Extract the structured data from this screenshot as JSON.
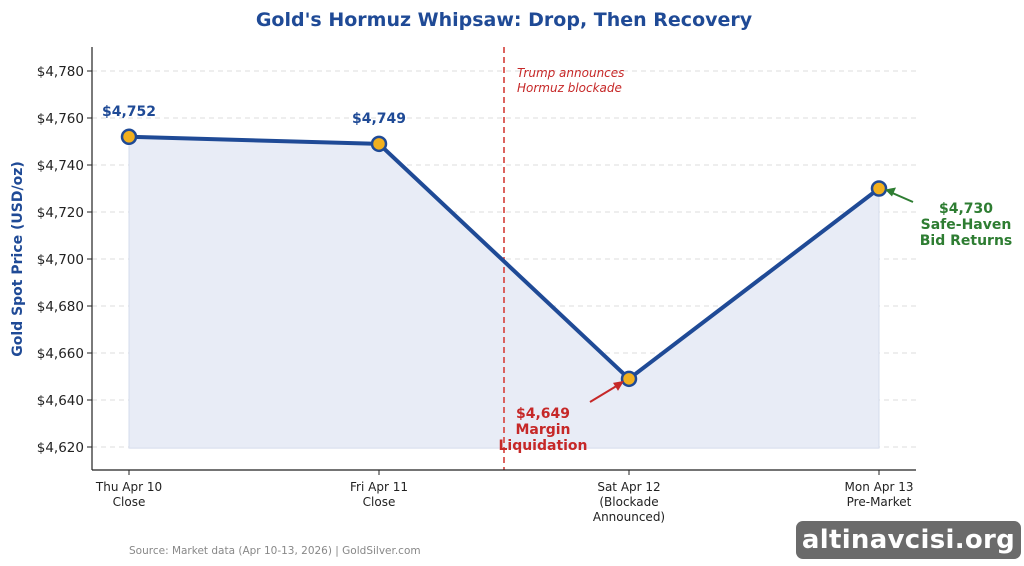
{
  "chart_data": {
    "type": "line",
    "title": "Gold's Hormuz Whipsaw: Drop, Then Recovery",
    "ylabel": "Gold Spot Price (USD/oz)",
    "xlabel": "",
    "categories": [
      [
        "Thu Apr 10",
        "Close"
      ],
      [
        "Fri Apr 11",
        "Close"
      ],
      [
        "Sat Apr 12",
        "(Blockade",
        "Announced)"
      ],
      [
        "Mon Apr 13",
        "Pre-Market"
      ]
    ],
    "values": [
      4752,
      4749,
      4649,
      4730
    ],
    "data_labels": [
      "$4,752",
      "$4,749",
      "",
      ""
    ],
    "ylim": [
      4610,
      4790
    ],
    "yticks": [
      4620,
      4640,
      4660,
      4680,
      4700,
      4720,
      4740,
      4760,
      4780
    ],
    "ytick_labels": [
      "$4,620",
      "$4,640",
      "$4,660",
      "$4,680",
      "$4,700",
      "$4,720",
      "$4,740",
      "$4,760",
      "$4,780"
    ],
    "grid": "horizontal dashed",
    "event_line": {
      "x_between": [
        1,
        2
      ],
      "text": [
        "Trump announces",
        "Hormuz blockade"
      ]
    },
    "annotations": [
      {
        "point_index": 2,
        "text": [
          "$4,649",
          "Margin",
          "Liquidation"
        ],
        "color": "#c62828"
      },
      {
        "point_index": 3,
        "text": [
          "$4,730",
          "Safe-Haven",
          "Bid Returns"
        ],
        "color": "#2e7d32"
      }
    ],
    "colors": {
      "line": "#1f4a96",
      "marker_fill": "#f2b01e",
      "area_fill": "#e8ecf6",
      "event": "#d9534f"
    }
  },
  "source": "Source: Market data (Apr 10-13, 2026)  |  GoldSilver.com",
  "watermark": "altinavcisi.org"
}
